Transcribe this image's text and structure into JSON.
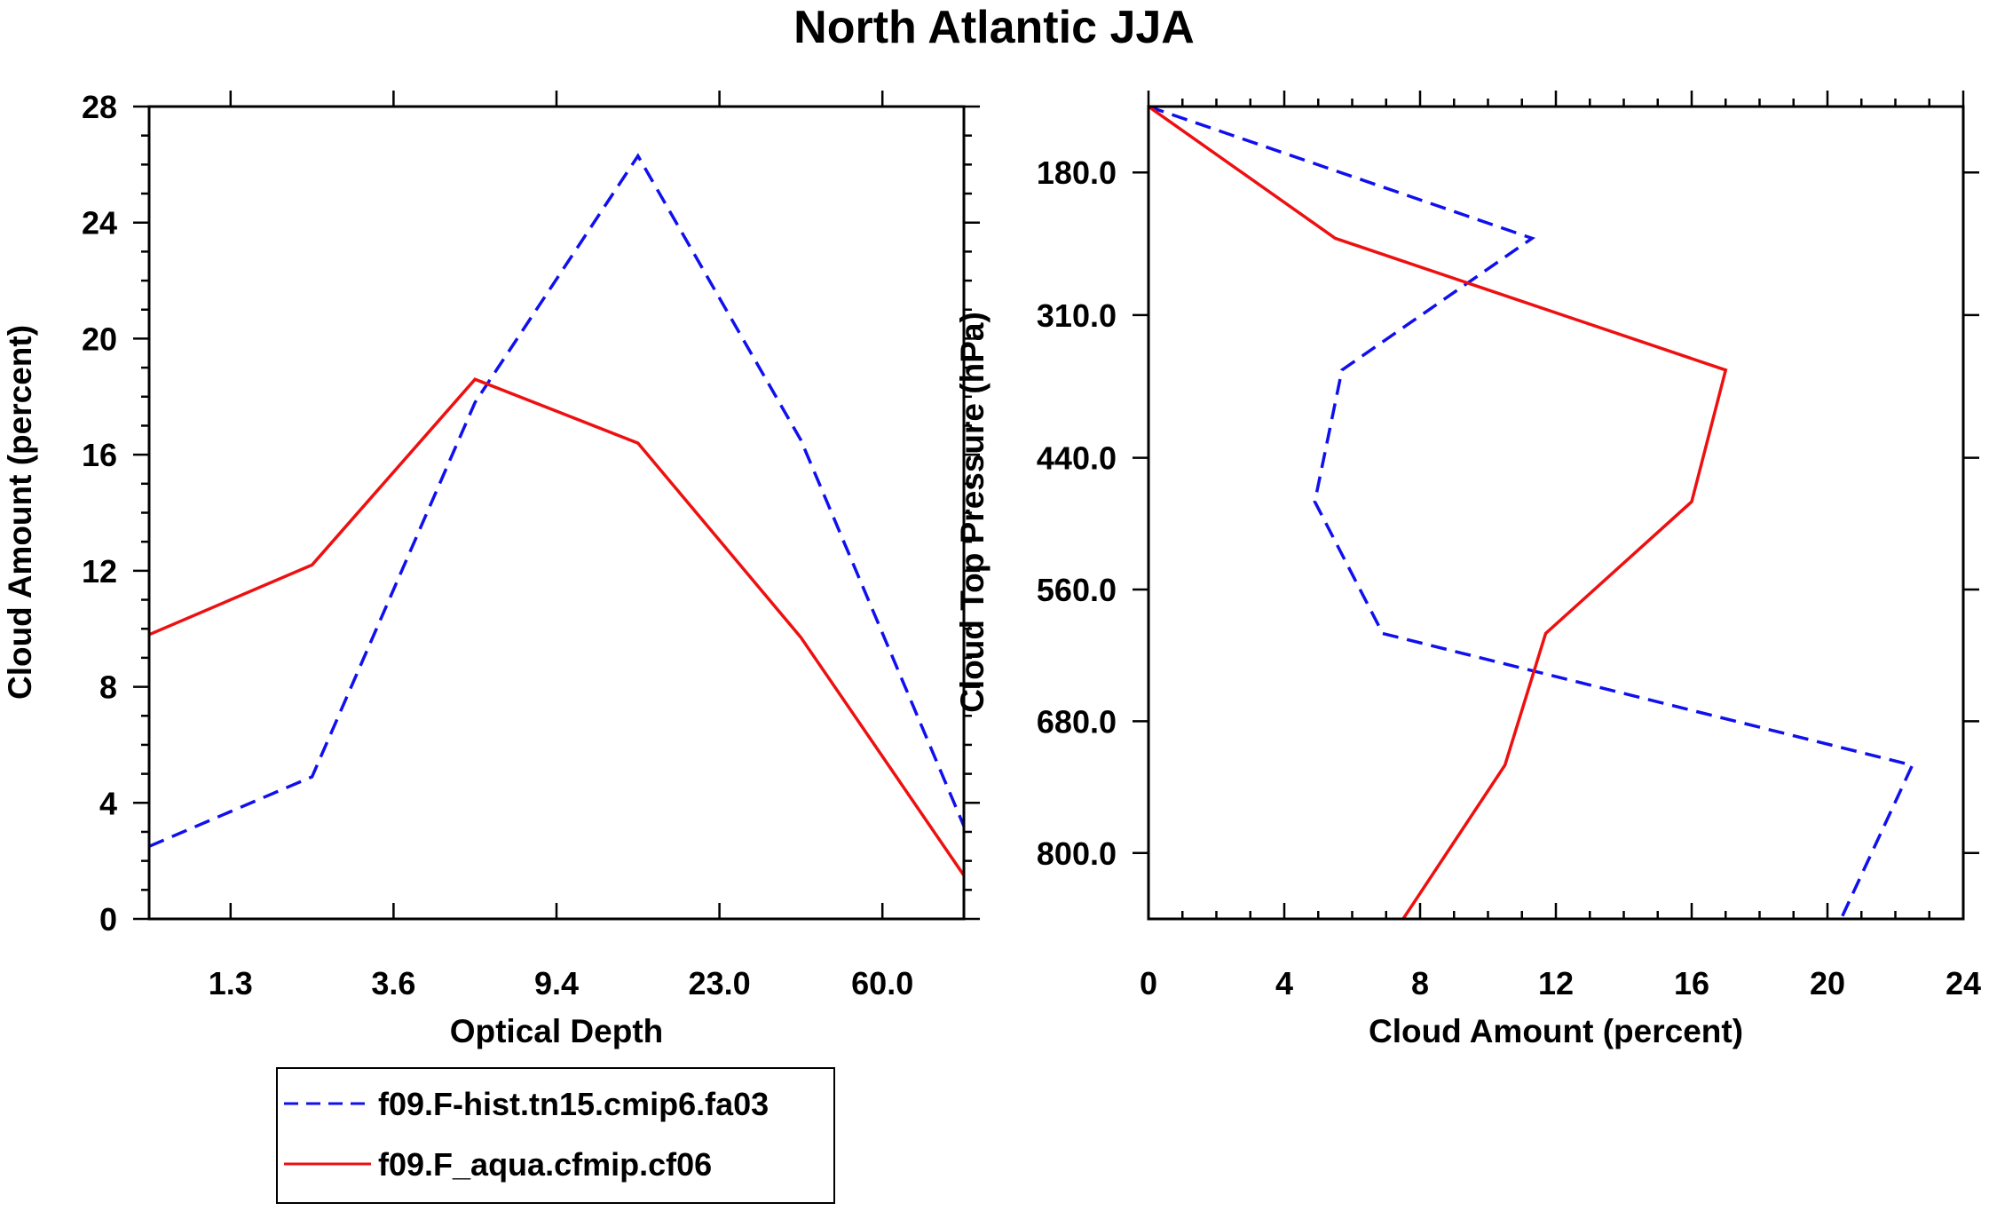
{
  "title": "North Atlantic JJA",
  "colors": {
    "series_blue": "#1010ee",
    "series_red": "#ee1010",
    "axes": "#000000"
  },
  "chart_data": [
    {
      "type": "line",
      "panel": "left",
      "xlabel": "Optical Depth",
      "ylabel": "Cloud Amount (percent)",
      "ylim": [
        0,
        28
      ],
      "xlim": [
        0,
        7
      ],
      "y_ticks": [
        0,
        4,
        8,
        12,
        16,
        20,
        24,
        28
      ],
      "x_tick_positions": [
        0.7,
        2.1,
        3.5,
        4.9,
        6.3
      ],
      "x_tick_labels": [
        "1.3",
        "3.6",
        "9.4",
        "23.0",
        "60.0"
      ],
      "series": [
        {
          "name": "f09.F-hist.tn15.cmip6.fa03",
          "style": "dashed",
          "x": [
            0,
            1.4,
            2.8,
            4.2,
            5.6,
            7.0
          ],
          "y": [
            2.5,
            4.9,
            17.8,
            26.3,
            16.5,
            3.2
          ]
        },
        {
          "name": "f09.F_aqua.cfmip.cf06",
          "style": "solid",
          "x": [
            0,
            1.4,
            2.8,
            4.2,
            5.6,
            7.0
          ],
          "y": [
            9.8,
            12.2,
            18.6,
            16.4,
            9.7,
            1.5
          ]
        }
      ]
    },
    {
      "type": "line",
      "panel": "right",
      "xlabel": "Cloud Amount (percent)",
      "ylabel": "Cloud Top Pressure (hPa)",
      "xlim": [
        0,
        24
      ],
      "ylim": [
        120,
        860
      ],
      "y_reversed": true,
      "x_ticks": [
        0,
        4,
        8,
        12,
        16,
        20,
        24
      ],
      "y_ticks": [
        180,
        310,
        440,
        560,
        680,
        800
      ],
      "y_tick_labels": [
        "180.0",
        "310.0",
        "440.0",
        "560.0",
        "680.0",
        "800.0"
      ],
      "series": [
        {
          "name": "f09.F-hist.tn15.cmip6.fa03",
          "style": "dashed",
          "pressure": [
            120,
            240,
            360,
            480,
            600,
            720,
            860
          ],
          "amount": [
            0,
            11.3,
            5.7,
            4.9,
            6.9,
            22.5,
            20.4
          ]
        },
        {
          "name": "f09.F_aqua.cfmip.cf06",
          "style": "solid",
          "pressure": [
            120,
            240,
            360,
            480,
            600,
            720,
            860
          ],
          "amount": [
            0,
            5.5,
            17.0,
            16.0,
            11.7,
            10.5,
            7.5
          ]
        }
      ]
    }
  ],
  "legend": {
    "entries": [
      "f09.F-hist.tn15.cmip6.fa03",
      "f09.F_aqua.cfmip.cf06"
    ]
  }
}
